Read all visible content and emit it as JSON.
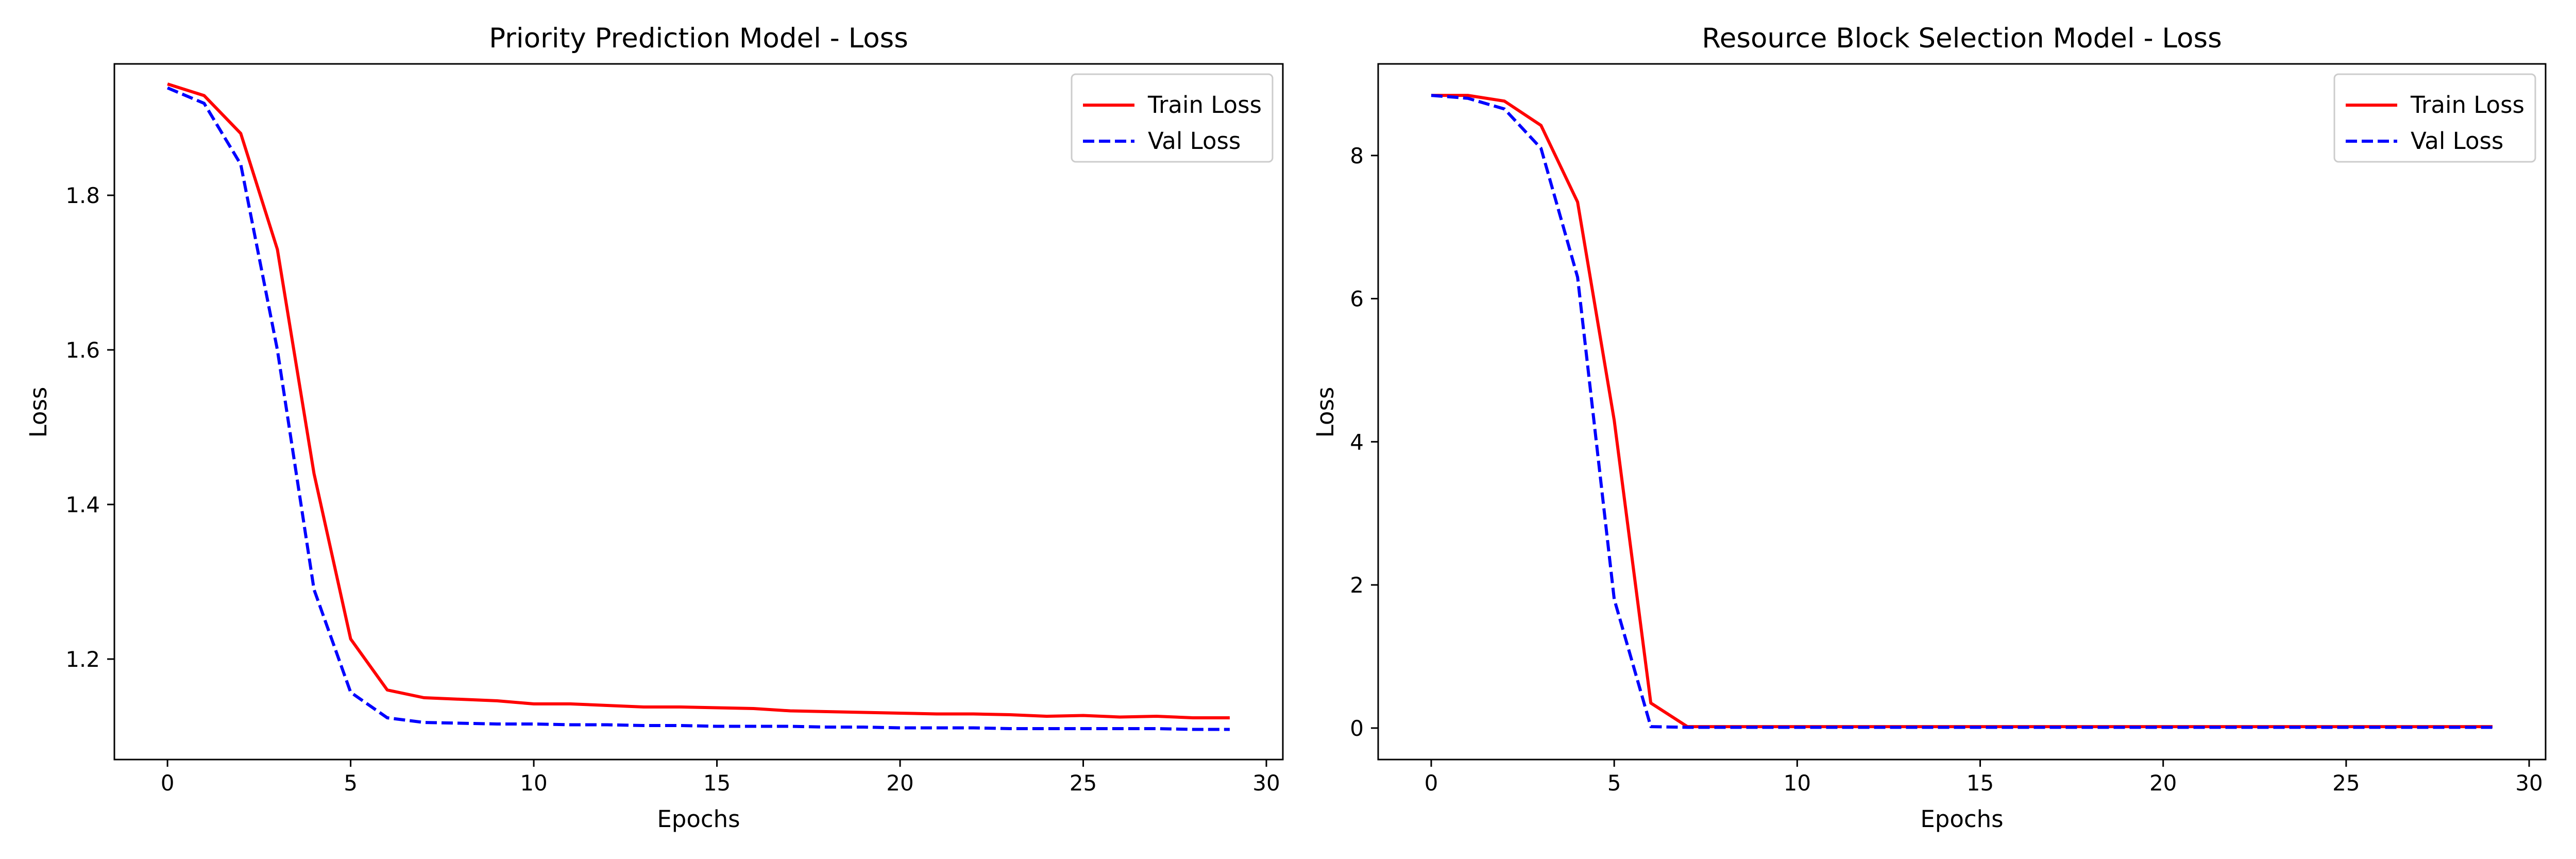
{
  "chart_data": [
    {
      "type": "line",
      "title": "Priority Prediction Model - Loss",
      "xlabel": "Epochs",
      "ylabel": "Loss",
      "xlim": [
        -1.45,
        30.45
      ],
      "ylim": [
        1.07,
        1.97
      ],
      "xticks": [
        0,
        5,
        10,
        15,
        20,
        25,
        30
      ],
      "yticks": [
        1.2,
        1.4,
        1.6,
        1.8
      ],
      "ytick_labels": [
        "1.2",
        "1.4",
        "1.6",
        "1.8"
      ],
      "grid": false,
      "legend": "top-right",
      "x": [
        0,
        1,
        2,
        3,
        4,
        5,
        6,
        7,
        8,
        9,
        10,
        11,
        12,
        13,
        14,
        15,
        16,
        17,
        18,
        19,
        20,
        21,
        22,
        23,
        24,
        25,
        26,
        27,
        28,
        29
      ],
      "series": [
        {
          "name": "Train Loss",
          "color": "#ff0000",
          "style": "solid",
          "values": [
            1.944,
            1.929,
            1.88,
            1.73,
            1.44,
            1.226,
            1.16,
            1.15,
            1.148,
            1.146,
            1.142,
            1.142,
            1.14,
            1.138,
            1.138,
            1.137,
            1.136,
            1.133,
            1.132,
            1.131,
            1.13,
            1.129,
            1.129,
            1.128,
            1.126,
            1.127,
            1.125,
            1.126,
            1.124,
            1.124
          ]
        },
        {
          "name": "Val Loss",
          "color": "#0000ff",
          "style": "dashed",
          "values": [
            1.939,
            1.919,
            1.84,
            1.6,
            1.29,
            1.157,
            1.124,
            1.118,
            1.117,
            1.116,
            1.116,
            1.115,
            1.115,
            1.114,
            1.114,
            1.113,
            1.113,
            1.113,
            1.112,
            1.112,
            1.111,
            1.111,
            1.111,
            1.11,
            1.11,
            1.11,
            1.11,
            1.11,
            1.109,
            1.109
          ]
        }
      ]
    },
    {
      "type": "line",
      "title": "Resource Block Selection Model - Loss",
      "xlabel": "Epochs",
      "ylabel": "Loss",
      "xlim": [
        -1.45,
        30.45
      ],
      "ylim": [
        -0.44,
        9.28
      ],
      "xticks": [
        0,
        5,
        10,
        15,
        20,
        25,
        30
      ],
      "yticks": [
        0,
        2,
        4,
        6,
        8
      ],
      "ytick_labels": [
        "0",
        "2",
        "4",
        "6",
        "8"
      ],
      "grid": false,
      "legend": "top-right",
      "x": [
        0,
        1,
        2,
        3,
        4,
        5,
        6,
        7,
        8,
        9,
        10,
        11,
        12,
        13,
        14,
        15,
        16,
        17,
        18,
        19,
        20,
        21,
        22,
        23,
        24,
        25,
        26,
        27,
        28,
        29
      ],
      "series": [
        {
          "name": "Train Loss",
          "color": "#ff0000",
          "style": "solid",
          "values": [
            8.84,
            8.84,
            8.76,
            8.42,
            7.35,
            4.3,
            0.35,
            0.02,
            0.02,
            0.02,
            0.02,
            0.02,
            0.02,
            0.02,
            0.02,
            0.02,
            0.02,
            0.02,
            0.02,
            0.02,
            0.02,
            0.02,
            0.02,
            0.02,
            0.02,
            0.02,
            0.02,
            0.02,
            0.02,
            0.02
          ]
        },
        {
          "name": "Val Loss",
          "color": "#0000ff",
          "style": "dashed",
          "values": [
            8.84,
            8.8,
            8.65,
            8.1,
            6.3,
            1.8,
            0.02,
            0.01,
            0.01,
            0.01,
            0.01,
            0.01,
            0.01,
            0.01,
            0.01,
            0.01,
            0.01,
            0.01,
            0.01,
            0.01,
            0.01,
            0.01,
            0.01,
            0.01,
            0.01,
            0.01,
            0.01,
            0.01,
            0.01,
            0.01
          ]
        }
      ]
    }
  ]
}
